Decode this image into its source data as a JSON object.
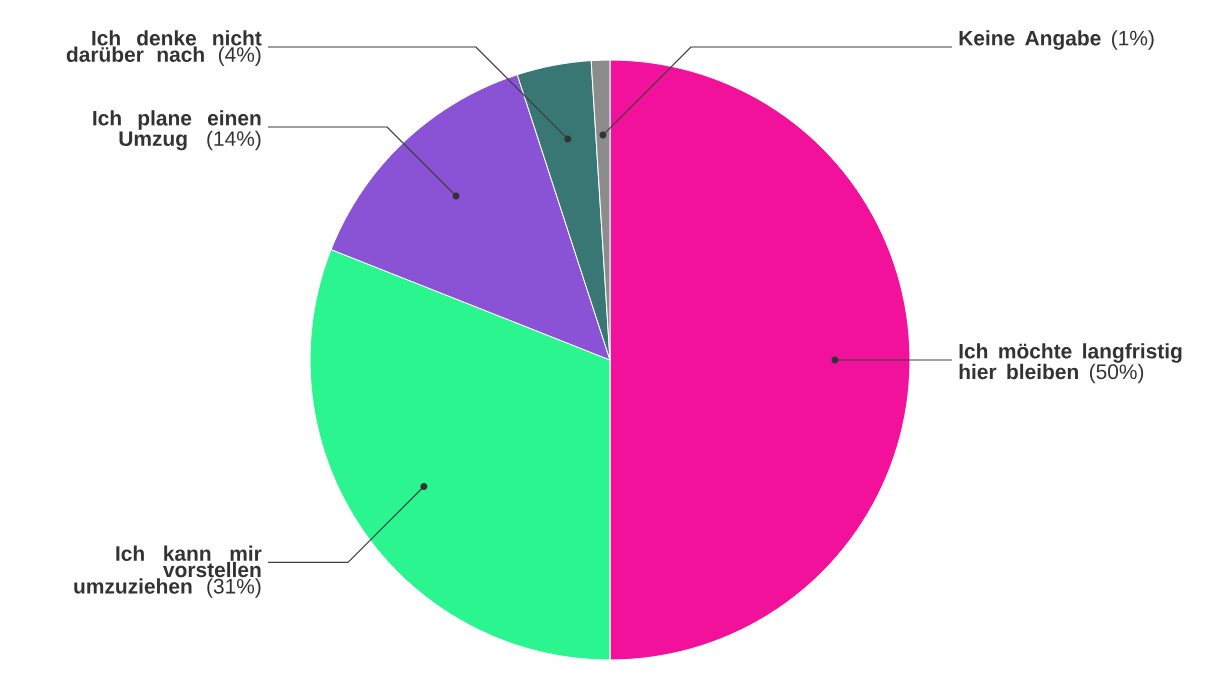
{
  "chart_data": {
    "type": "pie",
    "categories": [
      "Ich möchte langfristig hier bleiben",
      "Ich kann mir vorstellen umzuziehen",
      "Ich plane einen Umzug",
      "Ich denke nicht darüber nach",
      "Keine Angabe"
    ],
    "values": [
      50,
      31,
      14,
      4,
      1
    ],
    "value_labels": [
      "(50%)",
      "(31%)",
      "(14%)",
      "(4%)",
      "(1%)"
    ],
    "colors": [
      "#f2119b",
      "#2af58f",
      "#8a52d4",
      "#387774",
      "#8c8c8c"
    ]
  }
}
